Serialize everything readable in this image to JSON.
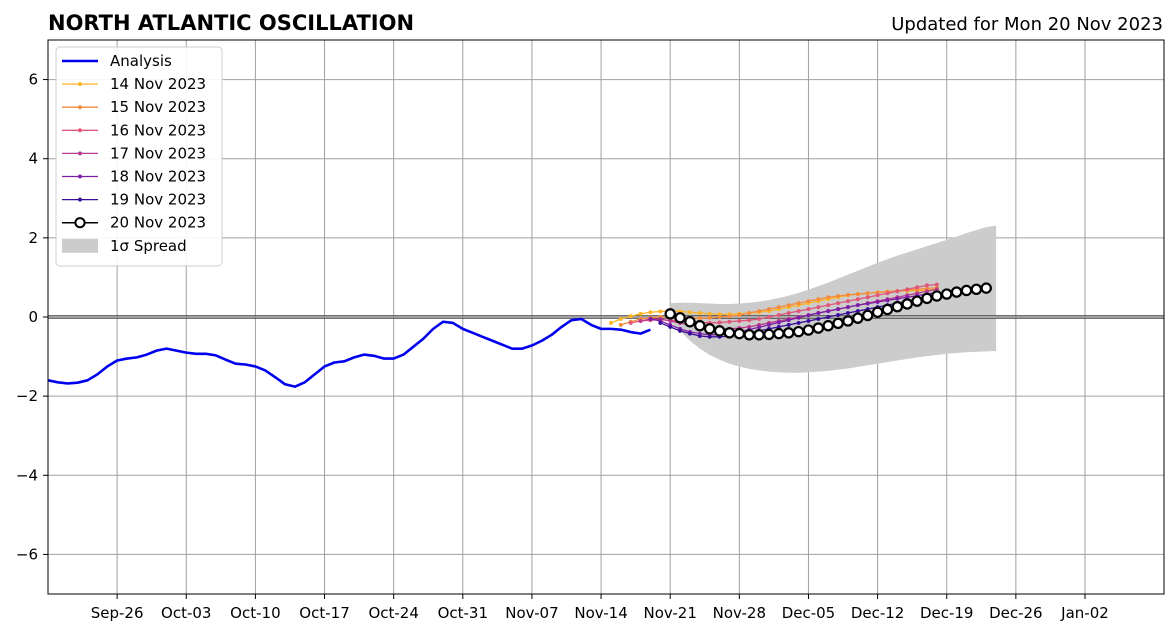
{
  "chart_data": {
    "type": "line",
    "title": "NORTH ATLANTIC OSCILLATION",
    "subtitle": "Updated for Mon 20 Nov 2023",
    "xlabel": "",
    "ylabel": "",
    "x_axis": {
      "type": "date",
      "range": [
        "2023-09-19",
        "2024-01-10"
      ],
      "tick_dates": [
        "2023-09-26",
        "2023-10-03",
        "2023-10-10",
        "2023-10-17",
        "2023-10-24",
        "2023-10-31",
        "2023-11-07",
        "2023-11-14",
        "2023-11-21",
        "2023-11-28",
        "2023-12-05",
        "2023-12-12",
        "2023-12-19",
        "2023-12-26",
        "2024-01-02"
      ],
      "tick_labels": [
        "Sep-26",
        "Oct-03",
        "Oct-10",
        "Oct-17",
        "Oct-24",
        "Oct-31",
        "Nov-07",
        "Nov-14",
        "Nov-21",
        "Nov-28",
        "Dec-05",
        "Dec-12",
        "Dec-19",
        "Dec-26",
        "Jan-02"
      ]
    },
    "y_axis": {
      "range": [
        -7,
        7
      ],
      "ticks": [
        -6,
        -4,
        -2,
        0,
        2,
        4,
        6
      ],
      "tick_labels": [
        "−6",
        "−4",
        "−2",
        "0",
        "2",
        "4",
        "6"
      ]
    },
    "grid": true,
    "zero_line": true,
    "legend_position": "top-left",
    "analysis": {
      "name": "Analysis",
      "color": "#0000ee",
      "start": "2023-09-19",
      "values": [
        -1.6,
        -1.65,
        -1.68,
        -1.66,
        -1.6,
        -1.45,
        -1.25,
        -1.1,
        -1.05,
        -1.02,
        -0.95,
        -0.85,
        -0.8,
        -0.85,
        -0.9,
        -0.93,
        -0.93,
        -0.97,
        -1.08,
        -1.18,
        -1.2,
        -1.25,
        -1.35,
        -1.52,
        -1.7,
        -1.76,
        -1.65,
        -1.45,
        -1.25,
        -1.15,
        -1.12,
        -1.02,
        -0.95,
        -0.98,
        -1.05,
        -1.05,
        -0.95,
        -0.75,
        -0.55,
        -0.3,
        -0.12,
        -0.15,
        -0.3,
        -0.4,
        -0.5,
        -0.6,
        -0.7,
        -0.8,
        -0.8,
        -0.72,
        -0.6,
        -0.45,
        -0.25,
        -0.08,
        -0.05,
        -0.2,
        -0.3,
        -0.3,
        -0.32,
        -0.38,
        -0.42,
        -0.32
      ]
    },
    "forecasts": [
      {
        "name": "14 Nov 2023",
        "color": "#fcb424",
        "start": "2023-11-15",
        "values": [
          -0.15,
          -0.05,
          0.02,
          0.08,
          0.12,
          0.14,
          0.15,
          0.14,
          0.12,
          0.1,
          0.08,
          0.07,
          0.07,
          0.08,
          0.1,
          0.12,
          0.15,
          0.2,
          0.25,
          0.3,
          0.35,
          0.4,
          0.45,
          0.5,
          0.55,
          0.58,
          0.6,
          0.62,
          0.64,
          0.65,
          0.66,
          0.67,
          0.68,
          0.7
        ]
      },
      {
        "name": "15 Nov 2023",
        "color": "#f58b3d",
        "start": "2023-11-16",
        "values": [
          -0.2,
          -0.12,
          -0.05,
          -0.02,
          0.0,
          0.01,
          0.0,
          -0.02,
          -0.03,
          -0.02,
          0.0,
          0.02,
          0.05,
          0.1,
          0.15,
          0.2,
          0.25,
          0.3,
          0.35,
          0.4,
          0.45,
          0.5,
          0.53,
          0.56,
          0.58,
          0.6,
          0.62,
          0.64,
          0.66,
          0.68,
          0.7,
          0.72,
          0.74
        ]
      },
      {
        "name": "16 Nov 2023",
        "color": "#e0567a",
        "start": "2023-11-17",
        "values": [
          -0.15,
          -0.1,
          -0.08,
          -0.07,
          -0.08,
          -0.1,
          -0.12,
          -0.14,
          -0.15,
          -0.14,
          -0.12,
          -0.1,
          -0.08,
          -0.05,
          0.0,
          0.05,
          0.1,
          0.15,
          0.2,
          0.25,
          0.3,
          0.35,
          0.4,
          0.45,
          0.5,
          0.55,
          0.6,
          0.65,
          0.7,
          0.75,
          0.8,
          0.82
        ]
      },
      {
        "name": "17 Nov 2023",
        "color": "#b8388c",
        "start": "2023-11-18",
        "values": [
          -0.1,
          -0.05,
          -0.05,
          -0.1,
          -0.15,
          -0.2,
          -0.25,
          -0.28,
          -0.3,
          -0.3,
          -0.28,
          -0.25,
          -0.2,
          -0.15,
          -0.1,
          -0.05,
          0.0,
          0.05,
          0.1,
          0.15,
          0.2,
          0.25,
          0.3,
          0.35,
          0.4,
          0.45,
          0.5,
          0.55,
          0.6,
          0.65,
          0.7
        ]
      },
      {
        "name": "18 Nov 2023",
        "color": "#7d1ea8",
        "start": "2023-11-19",
        "values": [
          -0.05,
          -0.1,
          -0.2,
          -0.3,
          -0.38,
          -0.42,
          -0.45,
          -0.45,
          -0.42,
          -0.38,
          -0.32,
          -0.26,
          -0.2,
          -0.14,
          -0.08,
          -0.02,
          0.04,
          0.1,
          0.15,
          0.2,
          0.25,
          0.3,
          0.34,
          0.38,
          0.42,
          0.46,
          0.5,
          0.54,
          0.58,
          0.62
        ]
      },
      {
        "name": "19 Nov 2023",
        "color": "#3a0e9a",
        "start": "2023-11-20",
        "values": [
          -0.15,
          -0.25,
          -0.35,
          -0.42,
          -0.48,
          -0.5,
          -0.5,
          -0.48,
          -0.44,
          -0.4,
          -0.35,
          -0.3,
          -0.25,
          -0.2,
          -0.15,
          -0.1,
          -0.05,
          0.0,
          0.05,
          0.1,
          0.15,
          0.2,
          0.25,
          0.3,
          0.35,
          0.4,
          0.45,
          0.5,
          0.55
        ]
      },
      {
        "name": "20 Nov 2023",
        "color": "#000000",
        "start": "2023-11-21",
        "values": [
          0.08,
          -0.02,
          -0.12,
          -0.22,
          -0.3,
          -0.35,
          -0.4,
          -0.42,
          -0.45,
          -0.45,
          -0.44,
          -0.42,
          -0.4,
          -0.37,
          -0.33,
          -0.28,
          -0.22,
          -0.16,
          -0.1,
          -0.03,
          0.04,
          0.12,
          0.19,
          0.26,
          0.33,
          0.4,
          0.47,
          0.53,
          0.58,
          0.63,
          0.67,
          0.7,
          0.73
        ]
      }
    ],
    "spread": {
      "name": "1σ Spread",
      "color": "#cccccc",
      "start": "2023-11-21",
      "upper": [
        0.35,
        0.36,
        0.36,
        0.35,
        0.34,
        0.33,
        0.33,
        0.34,
        0.36,
        0.39,
        0.43,
        0.48,
        0.54,
        0.61,
        0.69,
        0.78,
        0.87,
        0.97,
        1.07,
        1.17,
        1.27,
        1.37,
        1.46,
        1.55,
        1.63,
        1.71,
        1.79,
        1.87,
        1.95,
        2.03,
        2.12,
        2.2,
        2.27,
        2.31
      ],
      "lower": [
        -0.12,
        -0.35,
        -0.6,
        -0.8,
        -0.96,
        -1.08,
        -1.18,
        -1.25,
        -1.31,
        -1.35,
        -1.38,
        -1.4,
        -1.41,
        -1.41,
        -1.4,
        -1.38,
        -1.36,
        -1.33,
        -1.3,
        -1.26,
        -1.22,
        -1.18,
        -1.14,
        -1.1,
        -1.06,
        -1.02,
        -0.99,
        -0.96,
        -0.93,
        -0.91,
        -0.89,
        -0.88,
        -0.87,
        -0.86
      ]
    }
  }
}
